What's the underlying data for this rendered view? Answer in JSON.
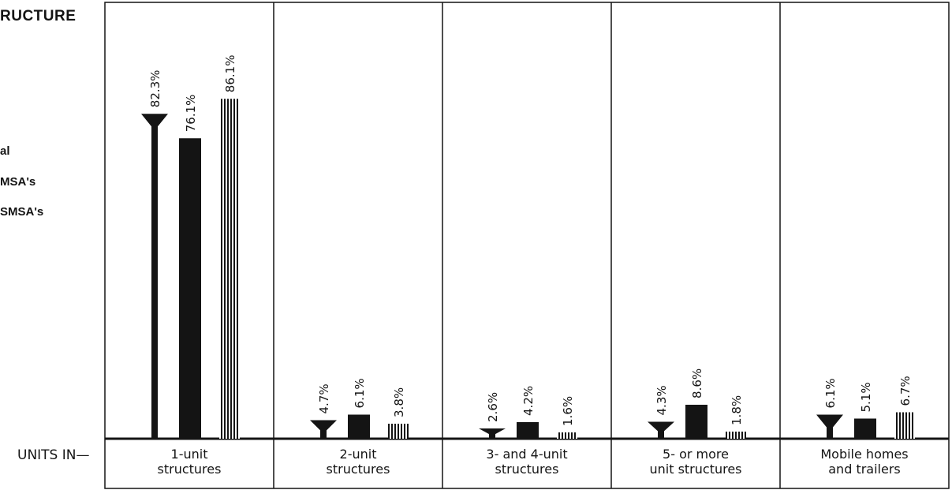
{
  "header": {
    "title_fragment": "RUCTURE"
  },
  "legend": [
    {
      "label": "al"
    },
    {
      "label": "MSA's"
    },
    {
      "label": "SMSA's"
    }
  ],
  "axis": {
    "units_label": "UNITS IN—"
  },
  "colors": {
    "ink": "#141414",
    "background": "#ffffff"
  },
  "chart_data": {
    "type": "bar",
    "categories": [
      [
        "1-unit",
        "structures"
      ],
      [
        "2-unit",
        "structures"
      ],
      [
        "3- and 4-unit",
        "structures"
      ],
      [
        "5- or more",
        "unit structures"
      ],
      [
        "Mobile homes",
        "and trailers"
      ]
    ],
    "series": [
      {
        "style": "funnel",
        "values": [
          82.3,
          4.7,
          2.6,
          4.3,
          6.1
        ]
      },
      {
        "style": "solid",
        "values": [
          76.1,
          6.1,
          4.2,
          8.6,
          5.1
        ]
      },
      {
        "style": "hatched",
        "values": [
          86.1,
          3.8,
          1.6,
          1.8,
          6.7
        ]
      }
    ],
    "value_labels": [
      [
        "82.3%",
        "76.1%",
        "86.1%"
      ],
      [
        "4.7%",
        "6.1%",
        "3.8%"
      ],
      [
        "2.6%",
        "4.2%",
        "1.6%"
      ],
      [
        "4.3%",
        "8.6%",
        "1.8%"
      ],
      [
        "6.1%",
        "5.1%",
        "6.7%"
      ]
    ],
    "ylim": [
      0,
      100
    ],
    "grid": false,
    "legend_position": "left"
  }
}
